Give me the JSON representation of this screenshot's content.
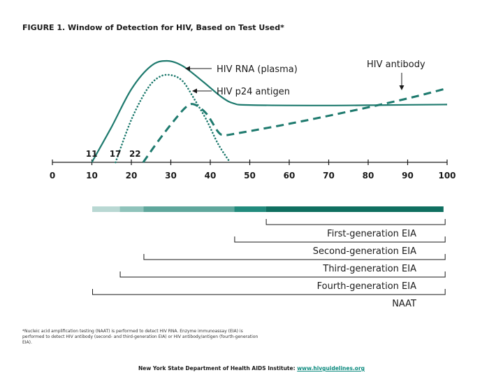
{
  "title": "FIGURE 1. Window of Detection for HIV, Based on Test Used*",
  "colors": {
    "curve": "#1e7a6e",
    "bar_segments": [
      "#b9d8d3",
      "#8fc3bb",
      "#5fa79c",
      "#228b7d",
      "#0f6f60"
    ]
  },
  "chart_data": {
    "type": "line",
    "xlim": [
      0,
      100
    ],
    "x_ticks": [
      "0",
      "10",
      "20",
      "30",
      "40",
      "50",
      "60",
      "70",
      "80",
      "90",
      "100"
    ],
    "onset_labels": [
      {
        "x": 11,
        "text": "11"
      },
      {
        "x": 17,
        "text": "17"
      },
      {
        "x": 22,
        "text": "22"
      }
    ],
    "series": [
      {
        "name": "HIV RNA (plasma)",
        "style": "solid",
        "points": [
          [
            10,
            0
          ],
          [
            15,
            35
          ],
          [
            20,
            72
          ],
          [
            25,
            95
          ],
          [
            29,
            100
          ],
          [
            33,
            95
          ],
          [
            38,
            80
          ],
          [
            43,
            64
          ],
          [
            46,
            58
          ],
          [
            50,
            56.5
          ],
          [
            70,
            56
          ],
          [
            85,
            56.5
          ],
          [
            100,
            57
          ]
        ]
      },
      {
        "name": "HIV p24 antigen",
        "style": "dotted",
        "points": [
          [
            16,
            0
          ],
          [
            20,
            42
          ],
          [
            24,
            72
          ],
          [
            27,
            84
          ],
          [
            30,
            86
          ],
          [
            33,
            80
          ],
          [
            36,
            62
          ],
          [
            39,
            42
          ],
          [
            42,
            18
          ],
          [
            45,
            0
          ]
        ]
      },
      {
        "name": "HIV antibody",
        "style": "dashed",
        "points": [
          [
            23,
            0
          ],
          [
            27,
            22
          ],
          [
            31,
            42
          ],
          [
            34,
            55
          ],
          [
            36,
            57
          ],
          [
            39,
            48
          ],
          [
            42,
            30
          ],
          [
            43.5,
            27
          ],
          [
            46,
            28
          ],
          [
            60,
            38
          ],
          [
            75,
            50
          ],
          [
            90,
            63
          ],
          [
            100,
            73
          ]
        ]
      }
    ],
    "detection_bar": [
      {
        "from": 10,
        "to": 17
      },
      {
        "from": 17,
        "to": 23
      },
      {
        "from": 23,
        "to": 46
      },
      {
        "from": 46,
        "to": 54
      },
      {
        "from": 54,
        "to": 99
      }
    ],
    "tests": [
      {
        "name": "First-generation EIA",
        "from": 54
      },
      {
        "name": "Second-generation EIA",
        "from": 46
      },
      {
        "name": "Third-generation EIA",
        "from": 23
      },
      {
        "name": "Fourth-generation EIA",
        "from": 17
      },
      {
        "name": "NAAT",
        "from": 10
      }
    ]
  },
  "footnote": "*Nucleic acid amplification testing (NAAT) is performed to detect HIV RNA. Enzyme immunoassay (EIA) is performed to detect HIV antibody (second- and third-generation EIA) or HIV antibody/antigen (fourth-generation EIA).",
  "credit": {
    "text": "New York State Department of Health AIDS Institute: ",
    "link": "www.hivguidelines.org"
  }
}
